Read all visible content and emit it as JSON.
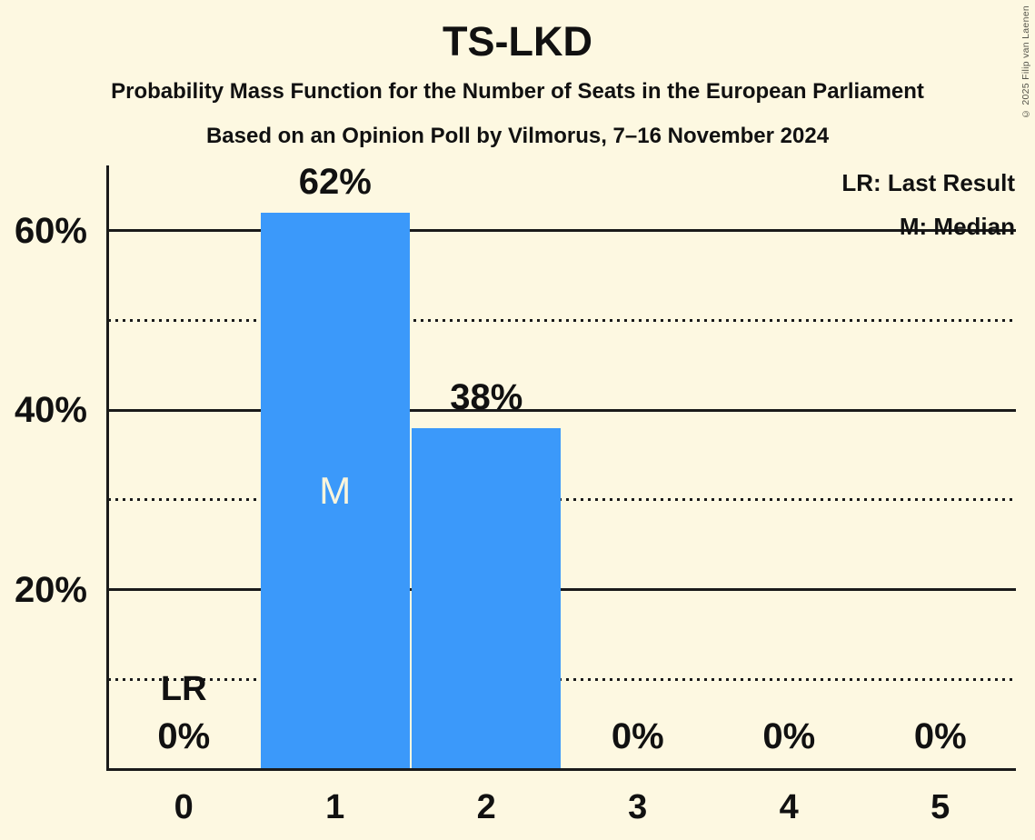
{
  "title": "TS-LKD",
  "subtitle1": "Probability Mass Function for the Number of Seats in the European Parliament",
  "subtitle2": "Based on an Opinion Poll by Vilmorus, 7–16 November 2024",
  "legend": {
    "lr": "LR: Last Result",
    "m": "M: Median"
  },
  "copyright": "© 2025 Filip van Laenen",
  "colors": {
    "background": "#FDF8E1",
    "bar": "#3B99FA",
    "text": "#111111",
    "bar_inner_label": "#FAF5DC"
  },
  "chart_data": {
    "type": "bar",
    "title": "TS-LKD",
    "categories": [
      "0",
      "1",
      "2",
      "3",
      "4",
      "5"
    ],
    "values": [
      0,
      62,
      38,
      0,
      0,
      0
    ],
    "bar_labels": [
      "0%",
      "62%",
      "38%",
      "0%",
      "0%",
      "0%"
    ],
    "xlabel": "",
    "ylabel": "",
    "ylim": [
      0,
      67
    ],
    "yticks_solid": [
      20,
      40,
      60
    ],
    "ytick_labels": [
      "20%",
      "40%",
      "60%"
    ],
    "yticks_dotted": [
      10,
      30,
      50
    ],
    "grid": "on",
    "legend_position": "top-right",
    "median_category": "1",
    "median_marker": "M",
    "last_result_category": "0",
    "last_result_marker": "LR"
  }
}
